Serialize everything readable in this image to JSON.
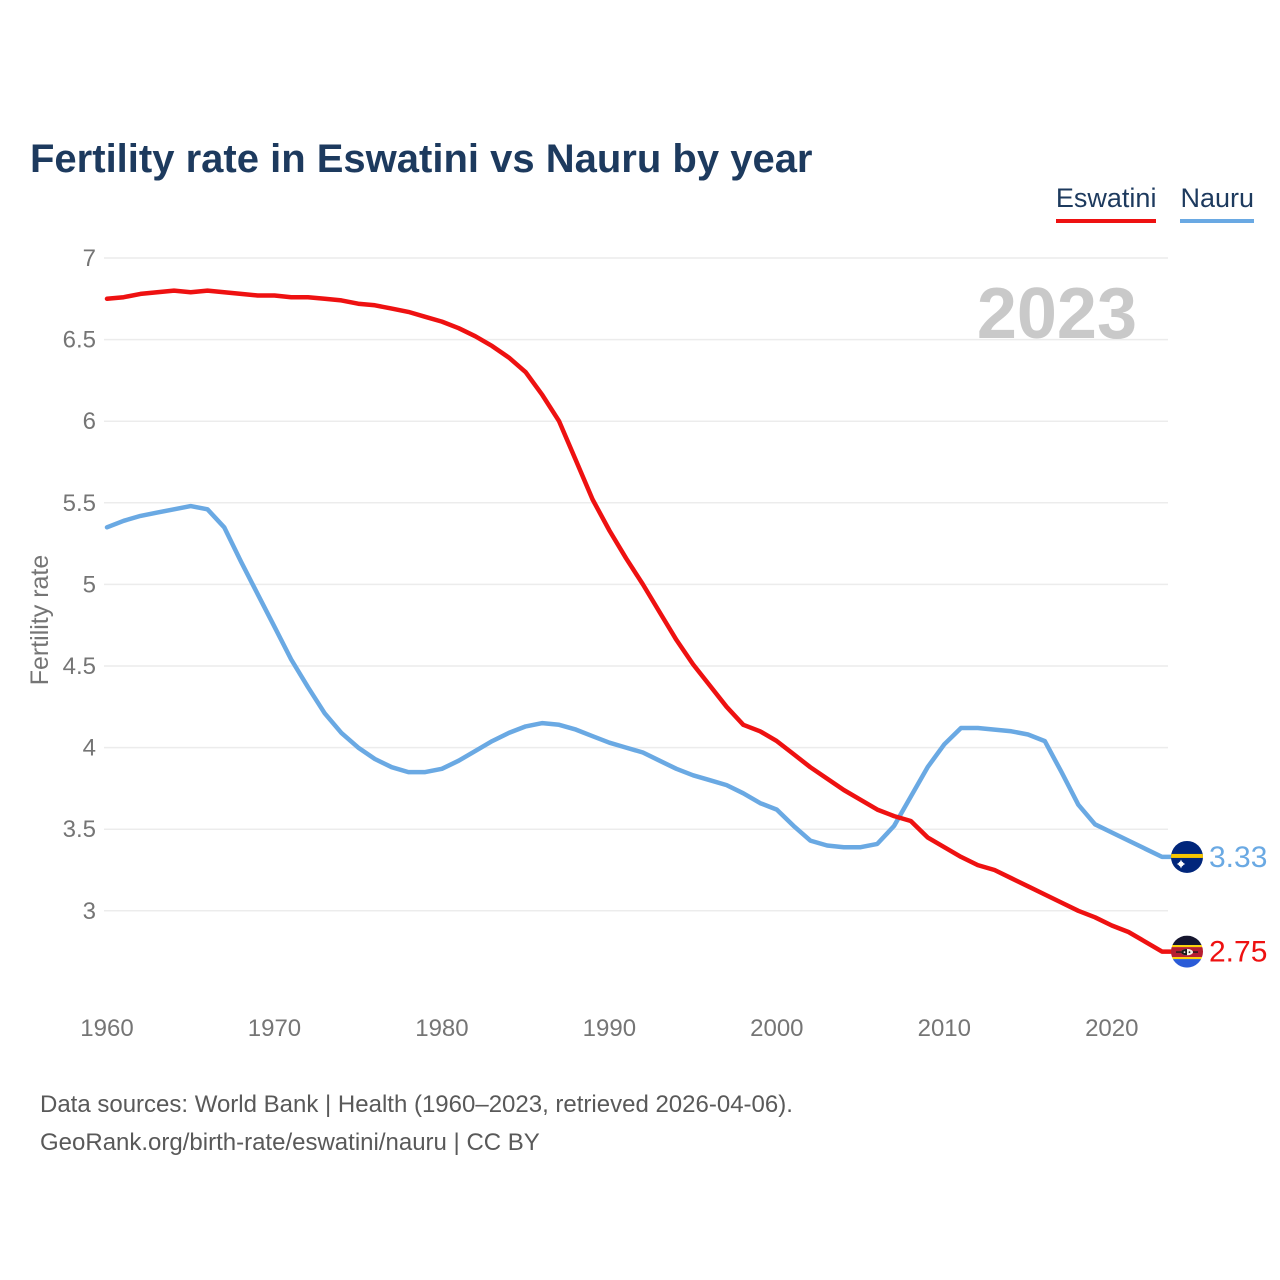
{
  "page": {
    "title": "Fertility rate in Eswatini vs Nauru by year",
    "watermark": "2023",
    "footer_line1": "Data sources: World Bank | Health (1960–2023, retrieved 2026-04-06).",
    "footer_line2": "GeoRank.org/birth-rate/eswatini/nauru | CC BY"
  },
  "legend": {
    "position": "top-right",
    "items": [
      {
        "label": "Eswatini",
        "color": "#ee1111"
      },
      {
        "label": "Nauru",
        "color": "#6aa9e3"
      }
    ]
  },
  "colors": {
    "title_text": "#1d3a5e",
    "axis_text": "#757575",
    "grid": "#ececec",
    "watermark": "#c9c9c9",
    "footer_text": "#595959",
    "eswatini_red": "#ee1111",
    "nauru_blue": "#6aa9e3"
  },
  "chart_data": {
    "type": "line",
    "title": "Fertility rate in Eswatini vs Nauru by year",
    "xlabel": "",
    "ylabel": "Fertility rate",
    "x_range": [
      1960,
      2023
    ],
    "x_ticks": [
      1960,
      1970,
      1980,
      1990,
      2000,
      2010,
      2020
    ],
    "y_ticks": [
      7,
      6.5,
      6,
      5.5,
      5,
      4.5,
      4,
      3.5,
      3
    ],
    "ylim": [
      3,
      7
    ],
    "grid": "horizontal",
    "legend_position": "top-right",
    "watermark": "2023",
    "series": [
      {
        "name": "Nauru",
        "color": "#6aa9e3",
        "end_label": "3.33",
        "end_value": 3.33,
        "flag": "nauru",
        "values": [
          5.35,
          5.39,
          5.42,
          5.44,
          5.46,
          5.48,
          5.46,
          5.35,
          5.14,
          4.94,
          4.74,
          4.54,
          4.37,
          4.21,
          4.09,
          4.0,
          3.93,
          3.88,
          3.85,
          3.85,
          3.87,
          3.92,
          3.98,
          4.04,
          4.09,
          4.13,
          4.15,
          4.14,
          4.11,
          4.07,
          4.03,
          4.0,
          3.97,
          3.92,
          3.87,
          3.83,
          3.8,
          3.77,
          3.72,
          3.66,
          3.62,
          3.52,
          3.43,
          3.4,
          3.39,
          3.39,
          3.41,
          3.52,
          3.7,
          3.88,
          4.02,
          4.12,
          4.12,
          4.11,
          4.1,
          4.08,
          4.04,
          3.85,
          3.65,
          3.53,
          3.48,
          3.43,
          3.38,
          3.33
        ]
      },
      {
        "name": "Eswatini",
        "color": "#ee1111",
        "end_label": "2.75",
        "end_value": 2.75,
        "flag": "eswatini",
        "values": [
          6.75,
          6.76,
          6.78,
          6.79,
          6.8,
          6.79,
          6.8,
          6.79,
          6.78,
          6.77,
          6.77,
          6.76,
          6.76,
          6.75,
          6.74,
          6.72,
          6.71,
          6.69,
          6.67,
          6.64,
          6.61,
          6.57,
          6.52,
          6.46,
          6.39,
          6.3,
          6.16,
          6.0,
          5.76,
          5.52,
          5.33,
          5.16,
          5.0,
          4.83,
          4.66,
          4.51,
          4.38,
          4.25,
          4.14,
          4.1,
          4.04,
          3.96,
          3.88,
          3.81,
          3.74,
          3.68,
          3.62,
          3.58,
          3.55,
          3.45,
          3.39,
          3.33,
          3.28,
          3.25,
          3.2,
          3.15,
          3.1,
          3.05,
          3.0,
          2.96,
          2.91,
          2.87,
          2.81,
          2.75
        ]
      }
    ]
  }
}
